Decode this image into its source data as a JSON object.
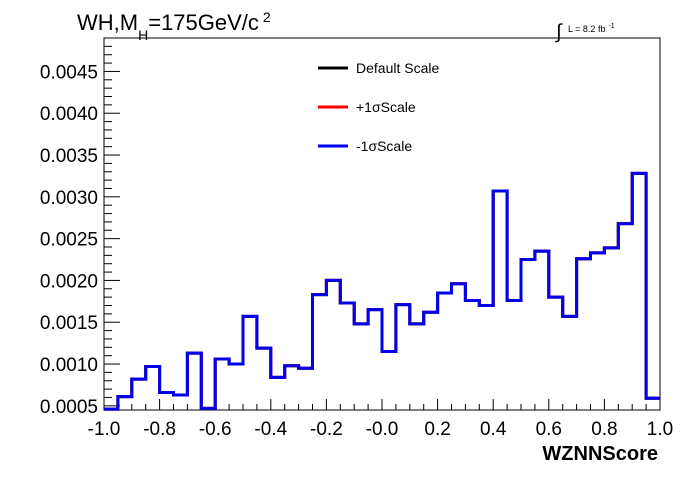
{
  "chart_data": {
    "type": "line",
    "title": "WH,M",
    "title_sub": "H",
    "title_rest": "=175GeV/c",
    "title_sup": "2",
    "lumi_label": "L = 8.2 fb",
    "lumi_sup": "-1",
    "xlabel": "WZNNScore",
    "ylabel": "",
    "xlim": [
      -1.0,
      1.0
    ],
    "ylim": [
      0.00045,
      0.0049
    ],
    "x_ticks": [
      "-1.0",
      "-0.8",
      "-0.6",
      "-0.4",
      "-0.2",
      "-0.0",
      "0.2",
      "0.4",
      "0.6",
      "0.8",
      "1.0"
    ],
    "x_tick_values": [
      -1.0,
      -0.8,
      -0.6,
      -0.4,
      -0.2,
      0.0,
      0.2,
      0.4,
      0.6,
      0.8,
      1.0
    ],
    "y_ticks": [
      "0.0005",
      "0.0010",
      "0.0015",
      "0.0020",
      "0.0025",
      "0.0030",
      "0.0035",
      "0.0040",
      "0.0045"
    ],
    "y_tick_values": [
      0.0005,
      0.001,
      0.0015,
      0.002,
      0.0025,
      0.003,
      0.0035,
      0.004,
      0.0045
    ],
    "bin_edges": [
      -1.0,
      -0.95,
      -0.9,
      -0.85,
      -0.8,
      -0.75,
      -0.7,
      -0.65,
      -0.6,
      -0.55,
      -0.5,
      -0.45,
      -0.4,
      -0.35,
      -0.3,
      -0.25,
      -0.2,
      -0.15,
      -0.1,
      -0.05,
      0.0,
      0.05,
      0.1,
      0.15,
      0.2,
      0.25,
      0.3,
      0.35,
      0.4,
      0.45,
      0.5,
      0.55,
      0.6,
      0.65,
      0.7,
      0.75,
      0.8,
      0.85,
      0.9,
      0.95,
      1.0
    ],
    "legend_position": "top-center",
    "series": [
      {
        "name": "Default Scale",
        "color": "#000000",
        "values": [
          0.00046,
          0.00061,
          0.00082,
          0.00097,
          0.00066,
          0.00063,
          0.00113,
          0.00047,
          0.00106,
          0.001,
          0.00157,
          0.00119,
          0.00084,
          0.00098,
          0.00095,
          0.00183,
          0.002,
          0.00173,
          0.00148,
          0.00165,
          0.00115,
          0.00171,
          0.00148,
          0.00162,
          0.00185,
          0.00196,
          0.00176,
          0.0017,
          0.00307,
          0.00176,
          0.00225,
          0.00235,
          0.0018,
          0.00157,
          0.00226,
          0.00233,
          0.00239,
          0.00268,
          0.00328,
          0.00059
        ]
      },
      {
        "name": "+1σScale",
        "color": "#ff0000",
        "values": [
          0.00046,
          0.00061,
          0.00082,
          0.00097,
          0.00066,
          0.00063,
          0.00113,
          0.00047,
          0.00106,
          0.001,
          0.00157,
          0.00119,
          0.00084,
          0.00098,
          0.00095,
          0.00183,
          0.002,
          0.00173,
          0.00148,
          0.00165,
          0.00115,
          0.00171,
          0.00148,
          0.00162,
          0.00185,
          0.00196,
          0.00176,
          0.0017,
          0.00307,
          0.00176,
          0.00225,
          0.00235,
          0.0018,
          0.00157,
          0.00226,
          0.00233,
          0.00239,
          0.00268,
          0.00328,
          0.00059
        ]
      },
      {
        "name": "-1σScale",
        "color": "#0000ee",
        "values": [
          0.00046,
          0.00061,
          0.00082,
          0.00097,
          0.00066,
          0.00063,
          0.00113,
          0.00047,
          0.00106,
          0.001,
          0.00157,
          0.00119,
          0.00084,
          0.00098,
          0.00095,
          0.00183,
          0.002,
          0.00173,
          0.00148,
          0.00165,
          0.00115,
          0.00171,
          0.00148,
          0.00162,
          0.00185,
          0.00196,
          0.00176,
          0.0017,
          0.00307,
          0.00176,
          0.00225,
          0.00235,
          0.0018,
          0.00157,
          0.00226,
          0.00233,
          0.00239,
          0.00268,
          0.00328,
          0.00059
        ]
      }
    ]
  }
}
